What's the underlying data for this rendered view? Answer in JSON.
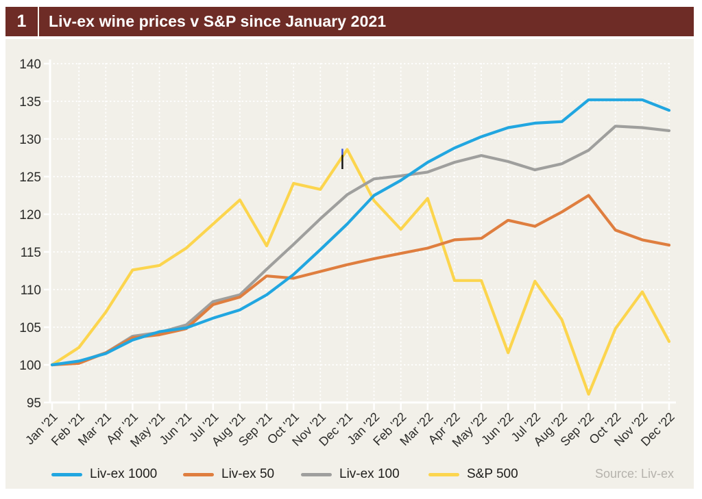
{
  "header": {
    "number": "1",
    "title": "Liv-ex wine prices v S&P since January 2021"
  },
  "chart_data": {
    "type": "line",
    "title": "Liv-ex wine prices v S&P since January 2021",
    "x_categories": [
      "Jan '21",
      "Feb '21",
      "Mar '21",
      "Apr '21",
      "May '21",
      "Jun '21",
      "Jul '21",
      "Aug '21",
      "Sep '21",
      "Oct '21",
      "Nov '21",
      "Dec '21",
      "Jan '22",
      "Feb '22",
      "Mar '22",
      "Apr '22",
      "May '22",
      "Jun '22",
      "Jul '22",
      "Aug '22",
      "Sep '22",
      "Oct '22",
      "Nov '22",
      "Dec '22"
    ],
    "ylim": [
      95,
      140
    ],
    "yticks": [
      95,
      100,
      105,
      110,
      115,
      120,
      125,
      130,
      135,
      140
    ],
    "index_base": 100,
    "grid": "white dotted, every month vertical, every 5 units horizontal",
    "legend_position": "bottom",
    "series": [
      {
        "name": "Liv-ex 1000",
        "color": "#21a6e0",
        "values": [
          100,
          100.5,
          101.5,
          103.3,
          104.4,
          104.9,
          106.2,
          107.3,
          109.3,
          112.0,
          115.3,
          118.7,
          122.5,
          124.5,
          126.9,
          128.8,
          130.3,
          131.5,
          132.1,
          132.3,
          135.2,
          135.2,
          135.2,
          133.8
        ]
      },
      {
        "name": "Liv-ex 50",
        "color": "#df7e3f",
        "values": [
          100,
          100.2,
          101.6,
          103.6,
          104.0,
          104.8,
          108.0,
          109.0,
          111.8,
          111.5,
          112.4,
          113.3,
          114.1,
          114.8,
          115.5,
          116.6,
          116.8,
          119.2,
          118.4,
          120.3,
          122.5,
          117.9,
          116.6,
          115.9
        ]
      },
      {
        "name": "Liv-ex 100",
        "color": "#9f9f9d",
        "values": [
          100,
          100.4,
          101.6,
          103.8,
          104.3,
          105.3,
          108.4,
          109.3,
          112.7,
          116.0,
          119.4,
          122.6,
          124.7,
          125.1,
          125.6,
          126.9,
          127.8,
          127.0,
          125.9,
          126.7,
          128.5,
          131.7,
          131.5,
          131.1
        ]
      },
      {
        "name": "S&P 500",
        "color": "#fcd54e",
        "values": [
          100,
          102.3,
          107.0,
          112.6,
          113.2,
          115.5,
          118.7,
          121.9,
          115.8,
          124.1,
          123.3,
          128.6,
          121.8,
          118.0,
          122.1,
          111.2,
          111.2,
          101.6,
          111.1,
          106.0,
          96.1,
          104.8,
          109.7,
          103.1
        ]
      }
    ],
    "annotation": {
      "type": "cursor-mark",
      "month_index": 11,
      "x_offset": -7,
      "value_top": 128.7,
      "value_tip_split": 127.9,
      "value_bottom": 126.0,
      "tip_color": "#3a55d4",
      "bar_color": "#141414"
    },
    "source": "Source: Liv-ex"
  },
  "colors": {
    "header_bg": "#6e2c26",
    "header_text": "#ffffff",
    "panel_bg": "#f2f0e9",
    "grid": "#ffffff",
    "axis": "#ffffff",
    "axis_text": "#2a2a28",
    "legend_text": "#1e1d1b",
    "source_text": "#b5b2ac"
  }
}
